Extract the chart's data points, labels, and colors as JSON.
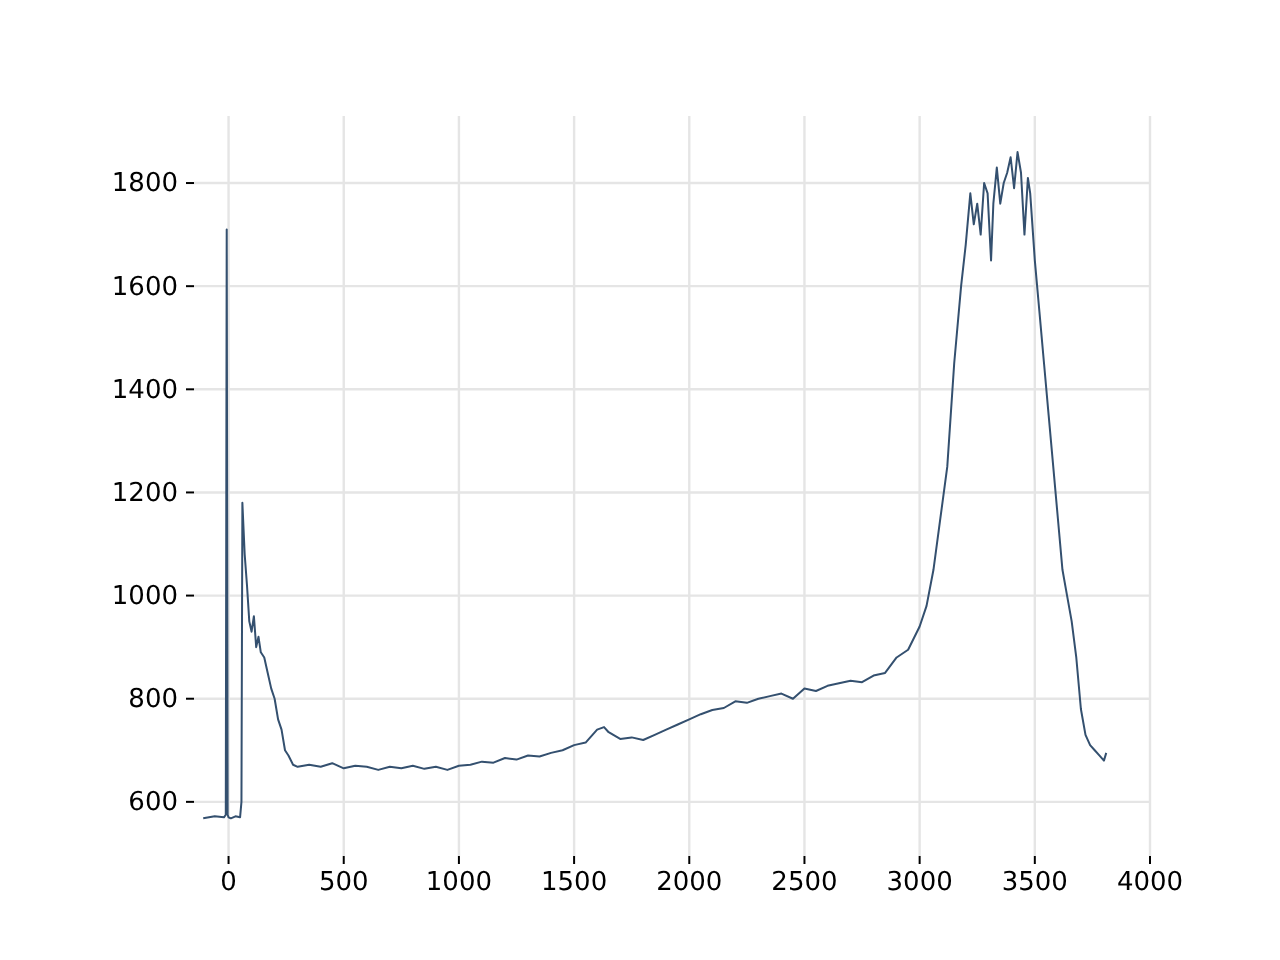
{
  "chart_data": {
    "type": "line",
    "xlim": [
      -150,
      4000
    ],
    "ylim": [
      495,
      1930
    ],
    "xticks": [
      0,
      500,
      1000,
      1500,
      2000,
      2500,
      3000,
      3500,
      4000
    ],
    "yticks": [
      600,
      800,
      1000,
      1200,
      1400,
      1600,
      1800
    ],
    "grid": true,
    "series": [
      {
        "color": "#34506f",
        "x": [
          -110,
          -60,
          -20,
          -12,
          -8,
          -4,
          0,
          10,
          30,
          50,
          56,
          60,
          70,
          80,
          90,
          100,
          110,
          120,
          130,
          140,
          155,
          170,
          185,
          200,
          215,
          230,
          245,
          260,
          280,
          300,
          350,
          400,
          450,
          500,
          550,
          600,
          650,
          700,
          750,
          800,
          850,
          900,
          950,
          1000,
          1050,
          1100,
          1150,
          1200,
          1250,
          1300,
          1350,
          1400,
          1450,
          1500,
          1550,
          1600,
          1630,
          1650,
          1700,
          1750,
          1800,
          1850,
          1900,
          1950,
          2000,
          2050,
          2100,
          2150,
          2200,
          2250,
          2300,
          2350,
          2400,
          2450,
          2500,
          2550,
          2600,
          2650,
          2700,
          2750,
          2800,
          2850,
          2900,
          2950,
          3000,
          3030,
          3060,
          3090,
          3120,
          3150,
          3180,
          3200,
          3220,
          3235,
          3250,
          3265,
          3280,
          3295,
          3310,
          3320,
          3335,
          3350,
          3365,
          3380,
          3395,
          3410,
          3425,
          3440,
          3455,
          3470,
          3480,
          3500,
          3520,
          3540,
          3560,
          3580,
          3600,
          3620,
          3640,
          3660,
          3680,
          3700,
          3720,
          3740,
          3760,
          3780,
          3800,
          3810
        ],
        "values": [
          568,
          572,
          570,
          575,
          1710,
          575,
          570,
          568,
          572,
          570,
          600,
          1180,
          1080,
          1020,
          950,
          930,
          960,
          900,
          920,
          890,
          880,
          850,
          820,
          800,
          760,
          740,
          700,
          690,
          672,
          668,
          672,
          668,
          675,
          665,
          670,
          668,
          662,
          668,
          665,
          670,
          664,
          668,
          662,
          670,
          672,
          678,
          676,
          685,
          682,
          690,
          688,
          695,
          700,
          710,
          715,
          740,
          745,
          735,
          722,
          725,
          720,
          730,
          740,
          750,
          760,
          770,
          778,
          782,
          795,
          792,
          800,
          805,
          810,
          800,
          820,
          815,
          825,
          830,
          835,
          832,
          845,
          850,
          880,
          895,
          940,
          980,
          1050,
          1150,
          1250,
          1450,
          1600,
          1680,
          1780,
          1720,
          1760,
          1700,
          1800,
          1780,
          1650,
          1760,
          1830,
          1760,
          1800,
          1820,
          1850,
          1790,
          1860,
          1820,
          1700,
          1810,
          1780,
          1650,
          1550,
          1450,
          1350,
          1250,
          1150,
          1050,
          1000,
          950,
          880,
          780,
          730,
          710,
          700,
          690,
          680,
          695
        ]
      }
    ]
  }
}
